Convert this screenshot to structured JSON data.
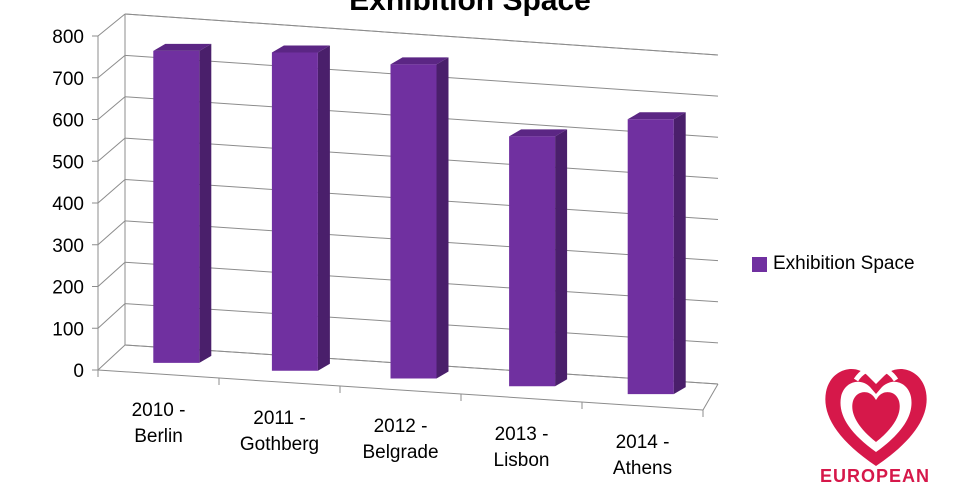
{
  "chart_data": {
    "type": "bar",
    "title": "Exhibition Space",
    "categories": [
      [
        "2010 -",
        "Berlin"
      ],
      [
        "2011 -",
        "Gothberg"
      ],
      [
        "2012 -",
        "Belgrade"
      ],
      [
        "2013 -",
        "Lisbon"
      ],
      [
        "2014 -",
        "Athens"
      ]
    ],
    "series": [
      {
        "name": "Exhibition Space",
        "values": [
          730,
          745,
          735,
          580,
          640
        ]
      }
    ],
    "ylim": [
      0,
      800
    ],
    "yticks": [
      0,
      100,
      200,
      300,
      400,
      500,
      600,
      700,
      800
    ],
    "grid": true,
    "legend": "right",
    "colors": {
      "bar_front": "#7030a0",
      "bar_side": "#4a1f6b",
      "bar_top": "#5b2684",
      "grid": "#8c8c8c"
    }
  },
  "logo": {
    "text": "EUROPEAN",
    "color": "#d6184a"
  }
}
